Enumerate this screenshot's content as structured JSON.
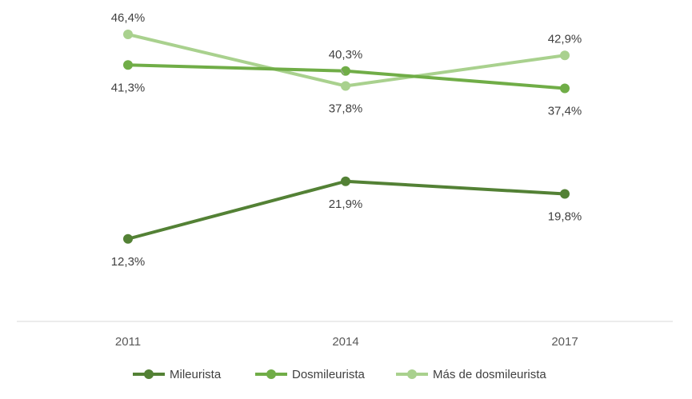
{
  "chart_data": {
    "type": "line",
    "title": "",
    "xlabel": "",
    "ylabel": "",
    "categories": [
      "2011",
      "2014",
      "2017"
    ],
    "ylim": [
      0,
      50
    ],
    "grid": false,
    "legend_position": "bottom",
    "series": [
      {
        "name": "Mileurista",
        "values": [
          12.3,
          21.9,
          19.8
        ],
        "labels": [
          "12,3%",
          "21,9%",
          "19,8%"
        ],
        "label_positions": [
          "below",
          "below",
          "below"
        ],
        "color": "#538135"
      },
      {
        "name": "Dosmileurista",
        "values": [
          41.3,
          40.3,
          37.4
        ],
        "labels": [
          "41,3%",
          "40,3%",
          "37,4%"
        ],
        "label_positions": [
          "below",
          "above",
          "below"
        ],
        "color": "#70AD47"
      },
      {
        "name": "Más de dosmileurista",
        "values": [
          46.4,
          37.8,
          42.9
        ],
        "labels": [
          "46,4%",
          "37,8%",
          "42,9%"
        ],
        "label_positions": [
          "above",
          "below",
          "above"
        ],
        "color": "#A9D18E"
      }
    ]
  }
}
